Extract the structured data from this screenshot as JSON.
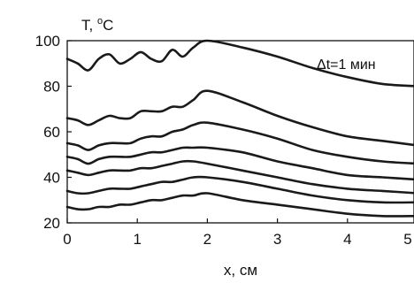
{
  "chart_data": {
    "type": "line",
    "ylabel_prefix": "T, ",
    "ylabel_sup": "o",
    "ylabel_suffix": "C",
    "xlabel": "x, см",
    "annotation": "Δt=1 мин",
    "xlim": [
      0,
      5
    ],
    "ylim": [
      20,
      100
    ],
    "xticks": [
      0,
      1,
      2,
      3,
      4,
      5
    ],
    "yticks": [
      20,
      40,
      60,
      80,
      100
    ],
    "grid": false,
    "series": [
      {
        "x": [
          0,
          0.15,
          0.3,
          0.45,
          0.6,
          0.75,
          0.9,
          1.05,
          1.2,
          1.35,
          1.5,
          1.65,
          1.8,
          2.0,
          2.5,
          3.0,
          3.5,
          4.0,
          4.5,
          5.0
        ],
        "y": [
          92,
          90,
          87,
          92,
          94,
          90,
          92,
          95,
          92,
          91,
          96,
          93,
          97,
          100,
          97,
          93,
          88,
          84,
          81,
          80
        ]
      },
      {
        "x": [
          0,
          0.15,
          0.3,
          0.45,
          0.6,
          0.75,
          0.9,
          1.05,
          1.2,
          1.35,
          1.5,
          1.65,
          1.8,
          2.0,
          2.5,
          3.0,
          3.5,
          4.0,
          4.5,
          5.0
        ],
        "y": [
          66,
          65,
          63,
          65,
          67,
          66,
          66,
          69,
          69,
          69,
          71,
          71,
          74,
          78,
          73,
          67,
          62,
          58,
          56,
          54
        ]
      },
      {
        "x": [
          0,
          0.15,
          0.3,
          0.45,
          0.6,
          0.75,
          0.9,
          1.05,
          1.2,
          1.35,
          1.5,
          1.65,
          1.8,
          2.0,
          2.5,
          3.0,
          3.5,
          4.0,
          4.5,
          5.0
        ],
        "y": [
          55,
          54,
          52,
          54,
          55,
          55,
          55,
          57,
          58,
          58,
          60,
          61,
          63,
          64,
          61,
          57,
          52,
          49,
          47,
          46
        ]
      },
      {
        "x": [
          0,
          0.15,
          0.3,
          0.45,
          0.6,
          0.75,
          0.9,
          1.05,
          1.2,
          1.35,
          1.5,
          1.65,
          1.8,
          2.0,
          2.5,
          3.0,
          3.5,
          4.0,
          4.5,
          5.0
        ],
        "y": [
          49,
          48,
          46,
          48,
          49,
          49,
          49,
          50,
          51,
          51,
          52,
          53,
          53,
          53,
          51,
          47,
          44,
          41,
          40,
          39
        ]
      },
      {
        "x": [
          0,
          0.15,
          0.3,
          0.45,
          0.6,
          0.75,
          0.9,
          1.05,
          1.2,
          1.35,
          1.5,
          1.65,
          1.8,
          2.0,
          2.5,
          3.0,
          3.5,
          4.0,
          4.5,
          5.0
        ],
        "y": [
          43,
          42,
          41,
          42,
          43,
          43,
          43,
          44,
          44,
          45,
          46,
          47,
          47,
          46,
          43,
          40,
          37,
          35,
          34,
          33
        ]
      },
      {
        "x": [
          0,
          0.15,
          0.3,
          0.45,
          0.6,
          0.75,
          0.9,
          1.05,
          1.2,
          1.35,
          1.5,
          1.65,
          1.8,
          2.0,
          2.5,
          3.0,
          3.5,
          4.0,
          4.5,
          5.0
        ],
        "y": [
          34,
          33,
          33,
          34,
          35,
          35,
          35,
          36,
          37,
          38,
          38,
          39,
          40,
          40,
          38,
          35,
          32,
          30,
          29,
          29
        ]
      },
      {
        "x": [
          0,
          0.15,
          0.3,
          0.45,
          0.6,
          0.75,
          0.9,
          1.05,
          1.2,
          1.35,
          1.5,
          1.65,
          1.8,
          2.0,
          2.5,
          3.0,
          3.5,
          4.0,
          4.5,
          5.0
        ],
        "y": [
          27,
          26,
          26,
          27,
          27,
          28,
          28,
          29,
          30,
          30,
          31,
          32,
          32,
          33,
          30,
          28,
          26,
          24,
          23,
          23
        ]
      }
    ]
  }
}
